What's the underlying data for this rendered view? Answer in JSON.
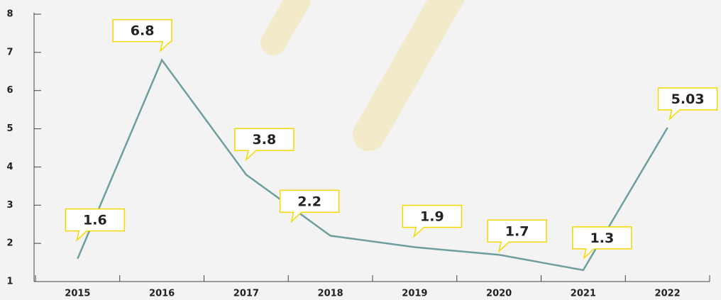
{
  "chart_data": {
    "type": "line",
    "categories": [
      "2015",
      "2016",
      "2017",
      "2018",
      "2019",
      "2020",
      "2021",
      "2022"
    ],
    "values": [
      1.6,
      6.8,
      3.8,
      2.2,
      1.9,
      1.7,
      1.3,
      5.03
    ],
    "color": "#6f9e9e",
    "ylim": [
      1,
      8
    ],
    "yticks": [
      1,
      2,
      3,
      4,
      5,
      6,
      7,
      8
    ]
  }
}
